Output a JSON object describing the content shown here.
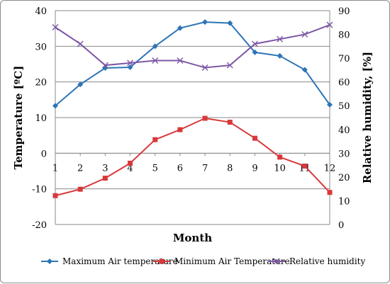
{
  "chart_data": {
    "type": "line",
    "xlabel": "Month",
    "ylabel": "Temperature [ºC]",
    "y2label": "Relative humidity, [%]",
    "categories": [
      "1",
      "2",
      "3",
      "4",
      "5",
      "6",
      "7",
      "8",
      "9",
      "10",
      "11",
      "12"
    ],
    "ylim": [
      -20,
      40
    ],
    "yticks": [
      "-20",
      "-10",
      "0",
      "10",
      "20",
      "30",
      "40"
    ],
    "y2lim": [
      0,
      90
    ],
    "y2ticks": [
      "0",
      "10",
      "20",
      "30",
      "40",
      "50",
      "60",
      "70",
      "80",
      "90"
    ],
    "grid": true,
    "legend_position": "bottom",
    "series": [
      {
        "name": "Maximum Air temperature",
        "axis": "left",
        "color": "#2e75b6",
        "marker": "diamond",
        "values": [
          13.3,
          19.3,
          23.9,
          24.1,
          30.0,
          35.1,
          36.8,
          36.5,
          28.3,
          27.3,
          23.4,
          13.6
        ]
      },
      {
        "name": "Minimum Air Temperature",
        "axis": "left",
        "color": "#d9383a",
        "marker": "square",
        "values": [
          -11.9,
          -10.1,
          -7.0,
          -2.8,
          3.8,
          6.6,
          9.8,
          8.7,
          4.2,
          -1.1,
          -3.6,
          -11.0
        ]
      },
      {
        "name": "Relative humidity",
        "axis": "right",
        "color": "#7d57a6",
        "marker": "x",
        "values": [
          83,
          76,
          67,
          68,
          69,
          69,
          66,
          67,
          76,
          78,
          80,
          84
        ]
      }
    ]
  }
}
